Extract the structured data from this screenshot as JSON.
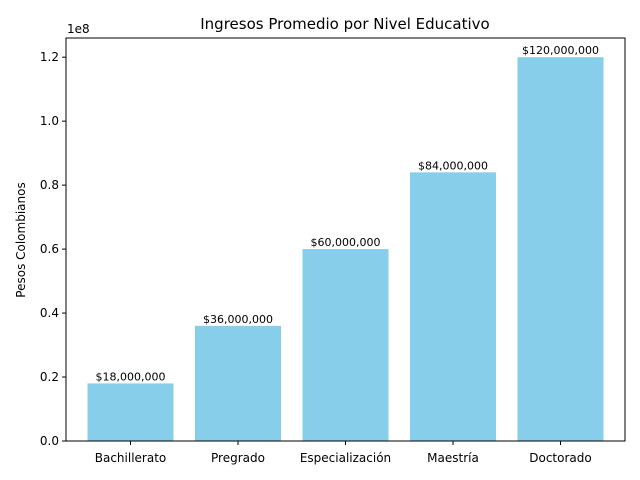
{
  "chart_data": {
    "type": "bar",
    "title": "Ingresos Promedio por Nivel Educativo",
    "xlabel": "",
    "ylabel": "Pesos Colombianos",
    "y_offset_label": "1e8",
    "categories": [
      "Bachillerato",
      "Pregrado",
      "Especialización",
      "Maestría",
      "Doctorado"
    ],
    "values": [
      18000000,
      36000000,
      60000000,
      84000000,
      120000000
    ],
    "data_labels": [
      "$18,000,000",
      "$36,000,000",
      "$60,000,000",
      "$84,000,000",
      "$120,000,000"
    ],
    "ylim": [
      0,
      126000000
    ],
    "yticks": [
      0,
      20000000,
      40000000,
      60000000,
      80000000,
      100000000,
      120000000
    ],
    "ytick_labels": [
      "0.0",
      "0.2",
      "0.4",
      "0.6",
      "0.8",
      "1.0",
      "1.2"
    ],
    "bar_color": "#87ceeb",
    "grid": false,
    "legend": "none"
  }
}
